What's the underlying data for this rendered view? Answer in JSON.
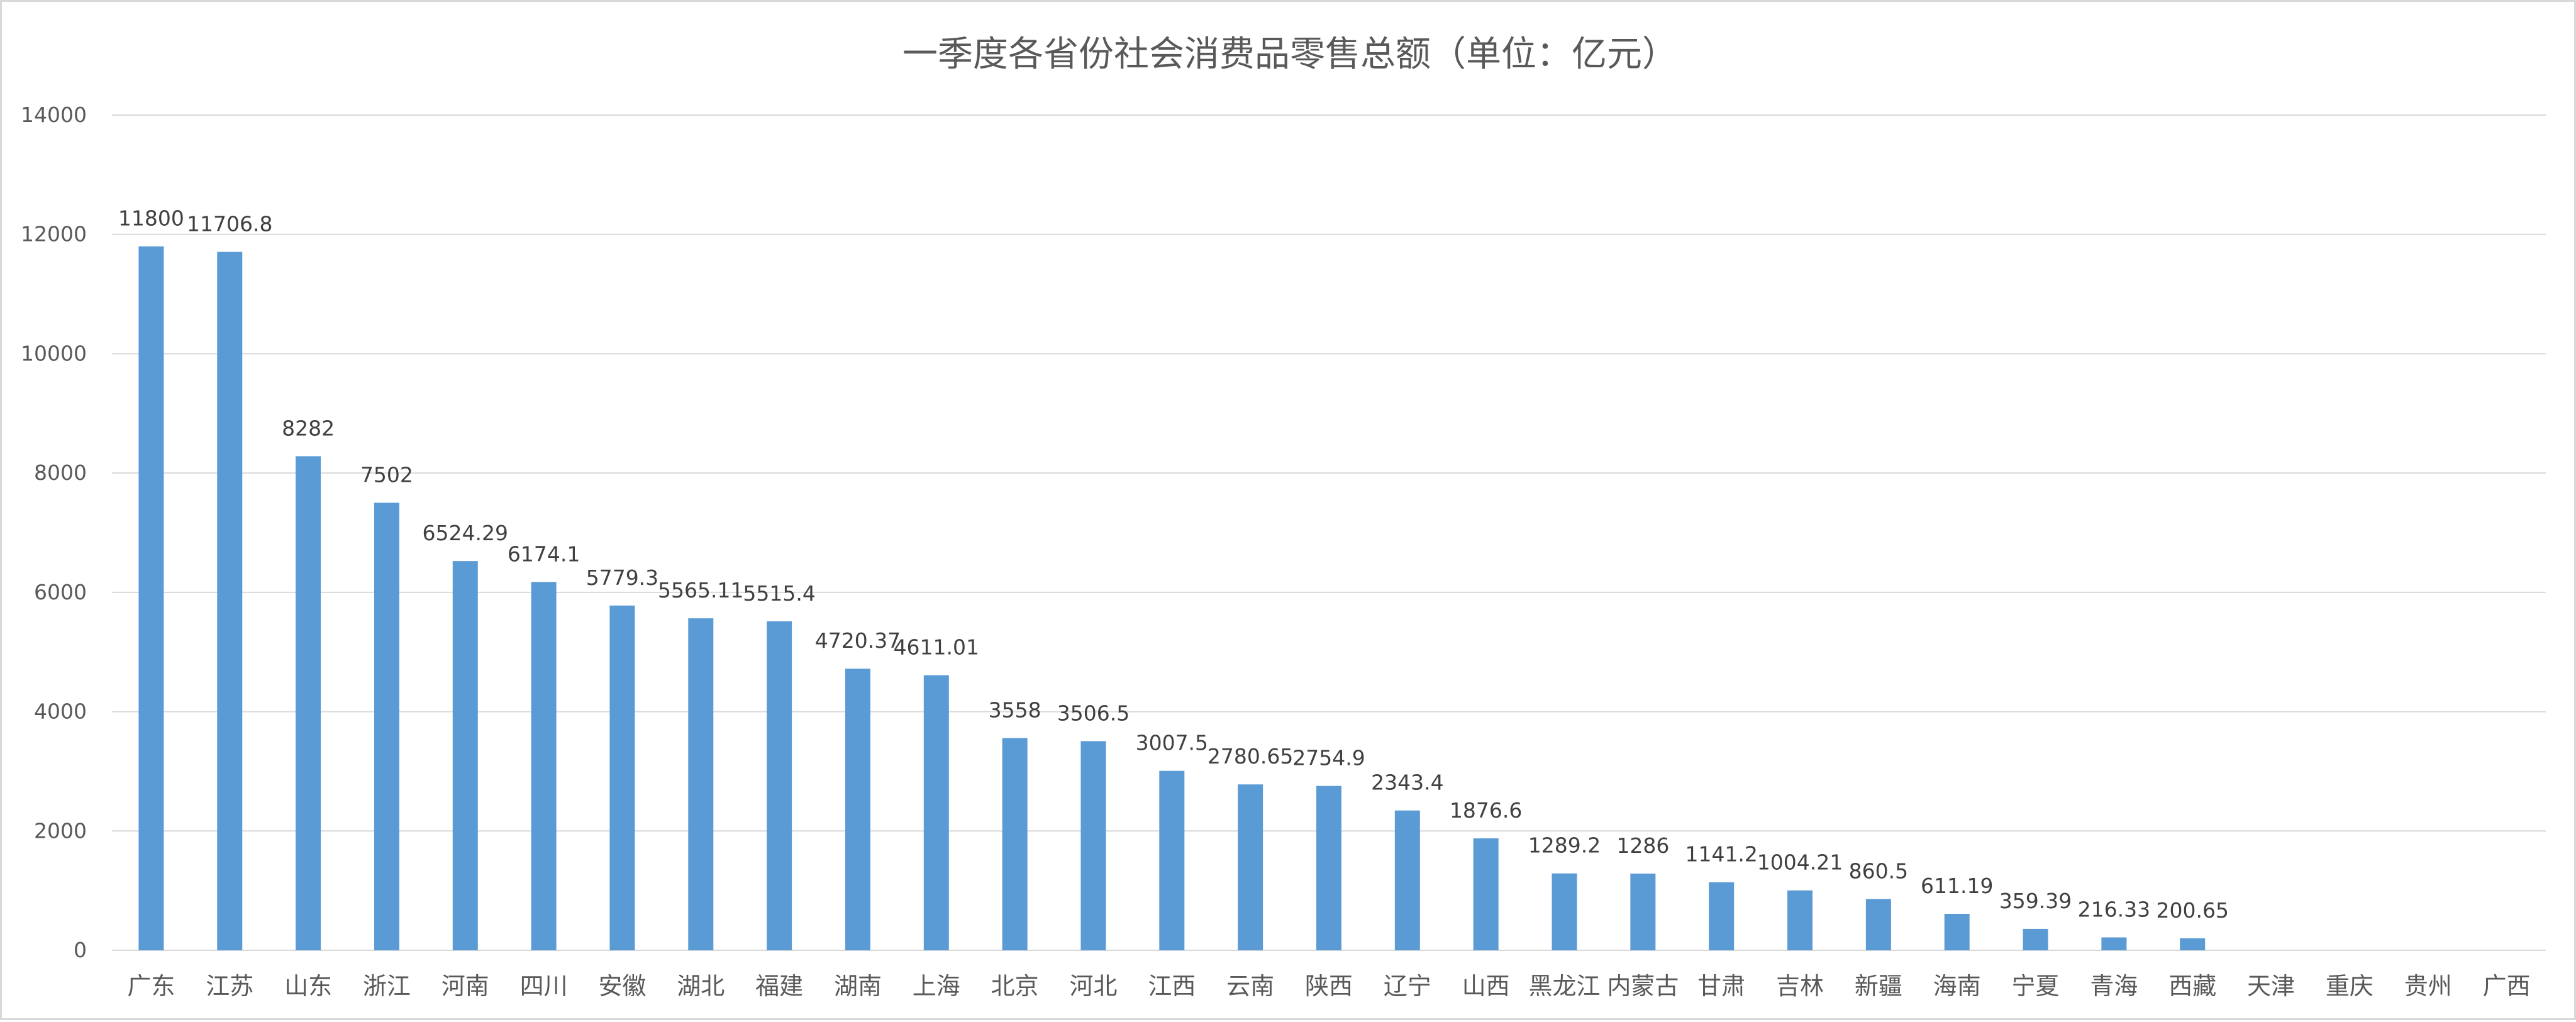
{
  "chart_data": {
    "type": "bar",
    "title": "一季度各省份社会消费品零售总额（单位：亿元）",
    "xlabel": "",
    "ylabel": "",
    "ylim": [
      0,
      14000
    ],
    "yticks": [
      0,
      2000,
      4000,
      6000,
      8000,
      10000,
      12000,
      14000
    ],
    "grid": true,
    "legend": "none",
    "bar_color": "#5b9bd5",
    "categories": [
      "广东",
      "江苏",
      "山东",
      "浙江",
      "河南",
      "四川",
      "安徽",
      "湖北",
      "福建",
      "湖南",
      "上海",
      "北京",
      "河北",
      "江西",
      "云南",
      "陕西",
      "辽宁",
      "山西",
      "黑龙江",
      "内蒙古",
      "甘肃",
      "吉林",
      "新疆",
      "海南",
      "宁夏",
      "青海",
      "西藏",
      "天津",
      "重庆",
      "贵州",
      "广西"
    ],
    "values": [
      11800,
      11706.8,
      8282,
      7502,
      6524.29,
      6174.1,
      5779.3,
      5565.11,
      5515.4,
      4720.37,
      4611.01,
      3558,
      3506.5,
      3007.5,
      2780.65,
      2754.9,
      2343.4,
      1876.6,
      1289.2,
      1286,
      1141.2,
      1004.21,
      860.5,
      611.19,
      359.39,
      216.33,
      200.65,
      null,
      null,
      null,
      null
    ],
    "labels": [
      "11800",
      "11706.8",
      "8282",
      "7502",
      "6524.29",
      "6174.1",
      "5779.3",
      "5565.11",
      "5515.4",
      "4720.37",
      "4611.01",
      "3558",
      "3506.5",
      "3007.5",
      "2780.65",
      "2754.9",
      "2343.4",
      "1876.6",
      "1289.2",
      "1286",
      "1141.2",
      "1004.21",
      "860.5",
      "611.19",
      "359.39",
      "216.33",
      "200.65",
      "",
      "",
      "",
      ""
    ]
  }
}
